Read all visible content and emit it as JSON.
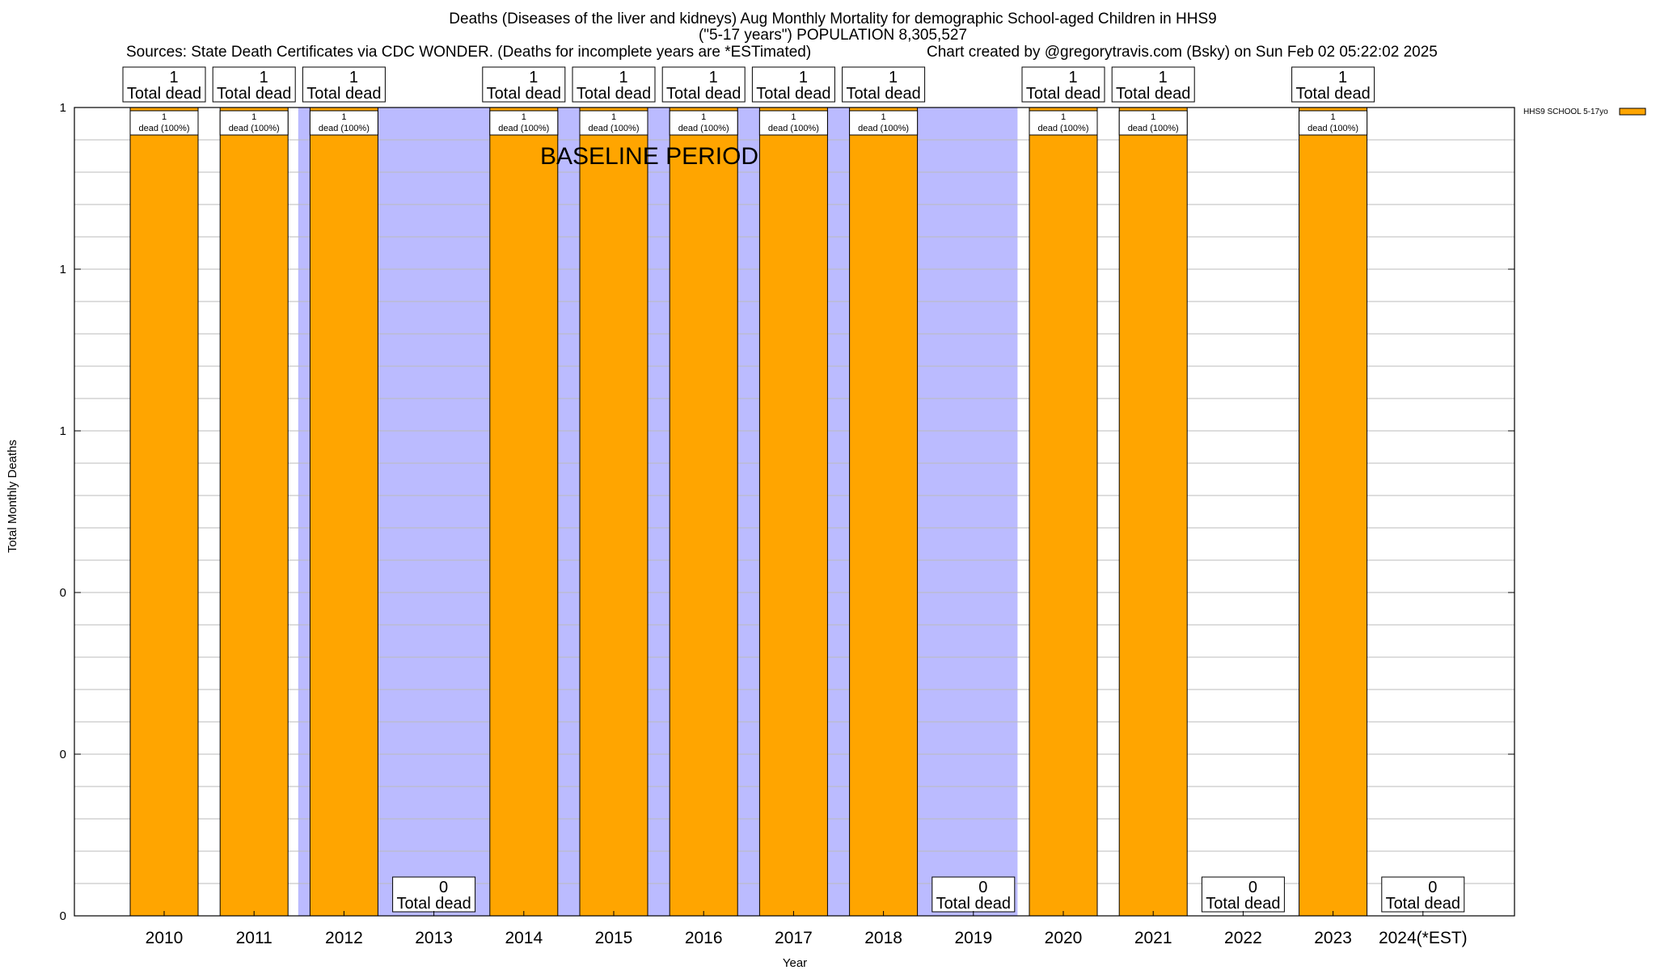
{
  "title_line1": "Deaths (Diseases of the liver and kidneys) Aug Monthly Mortality for demographic School-aged Children in HHS9",
  "title_line2": "(\"5-17 years\") POPULATION 8,305,527",
  "sources": "Sources: State Death Certificates via CDC WONDER. (Deaths for incomplete years are *ESTimated)",
  "credit": "Chart created by @gregorytravis.com (Bsky) on Sun Feb 02 05:22:02 2025",
  "colors": {
    "bar": "#FFA500",
    "baseline": "#BBBBFF",
    "grid": "#BBBBBB"
  },
  "chart_data": {
    "type": "bar",
    "xlabel": "Year",
    "ylabel": "Total Monthly Deaths",
    "categories": [
      "2010",
      "2011",
      "2012",
      "2013",
      "2014",
      "2015",
      "2016",
      "2017",
      "2018",
      "2019",
      "2020",
      "2021",
      "2022",
      "2023",
      "2024(*EST)"
    ],
    "series": [
      {
        "name": "HHS9 SCHOOL 5-17yo",
        "values": [
          1,
          1,
          1,
          0,
          1,
          1,
          1,
          1,
          1,
          0,
          1,
          1,
          0,
          1,
          0
        ]
      }
    ],
    "total_label_suffix": "Total dead",
    "inner_label_suffix": "dead (100%)",
    "y_ticks": [
      "0",
      "0",
      "0",
      "1",
      "1",
      "1"
    ],
    "ylim": [
      0,
      1
    ],
    "baseline_period": {
      "label": "BASELINE PERIOD",
      "from": "2012",
      "to": "2019"
    },
    "legend_position": "top-right",
    "grid": true
  }
}
